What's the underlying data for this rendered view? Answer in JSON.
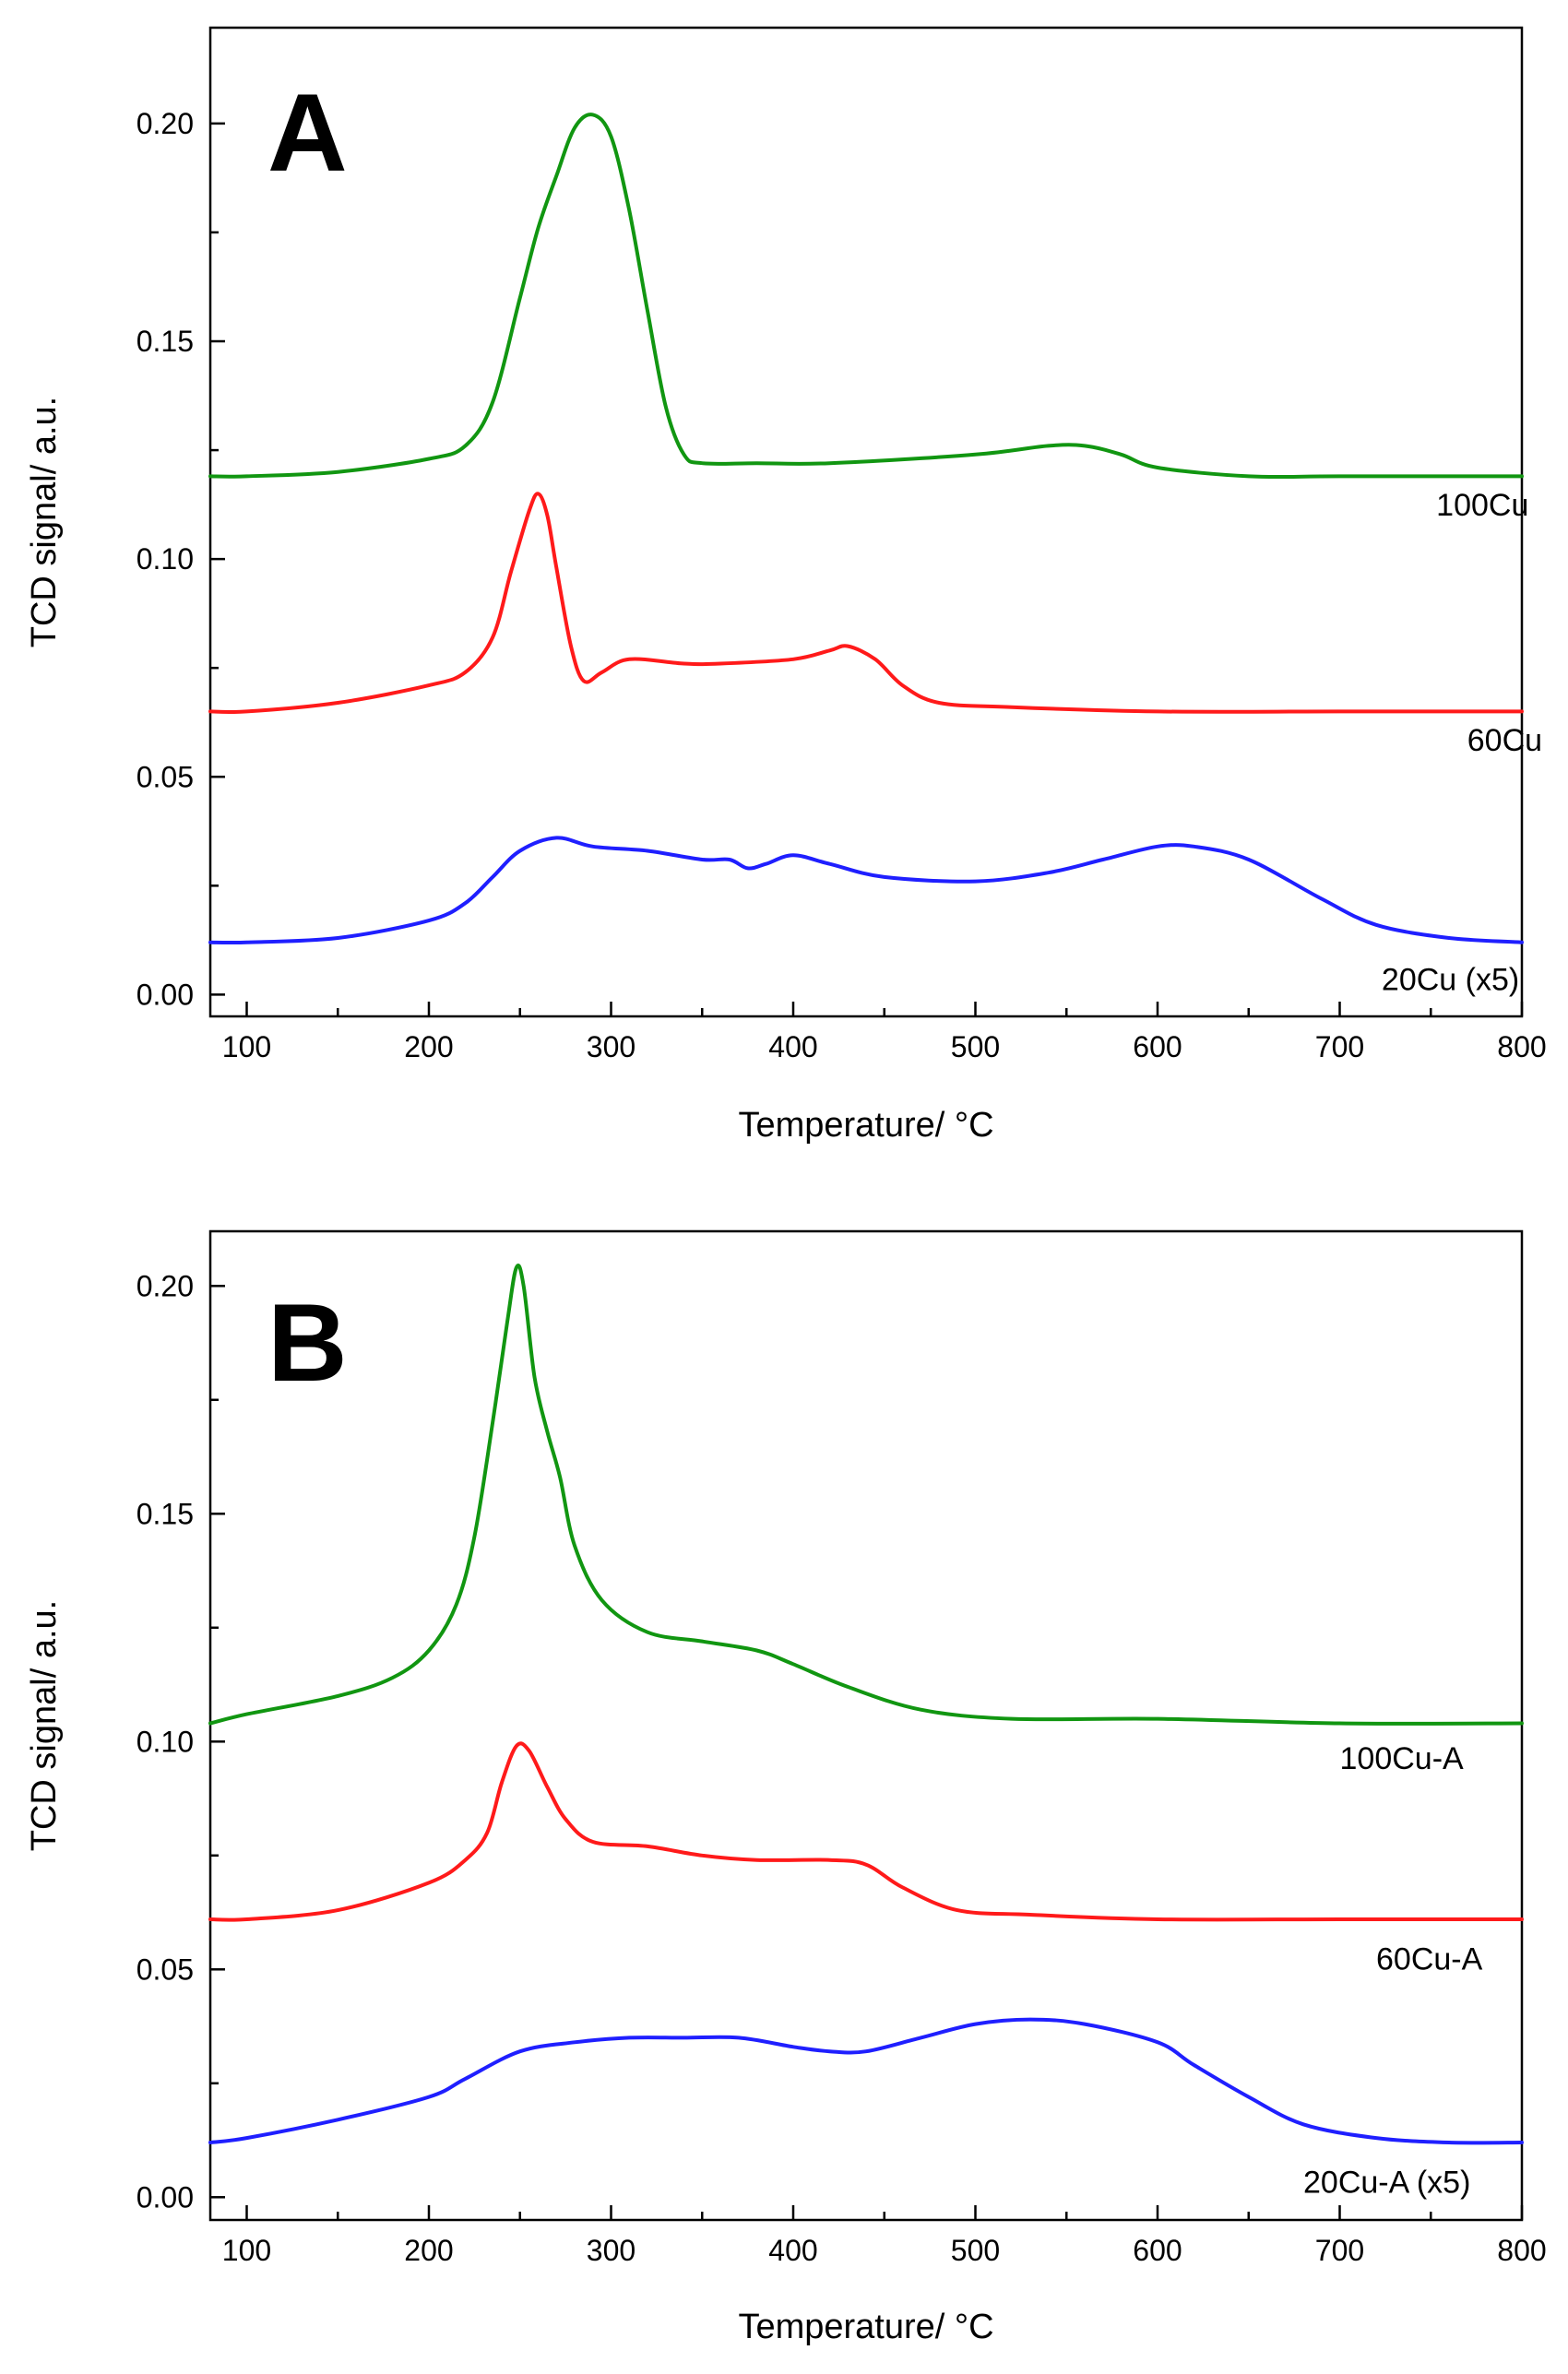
{
  "chart_data": [
    {
      "type": "line",
      "panel": "A",
      "xlabel": "Temperature/ °C",
      "ylabel": "TCD signal/ a.u.",
      "xlim": [
        80,
        800
      ],
      "ylim": [
        -0.005,
        0.222
      ],
      "x_ticks": [
        100,
        200,
        300,
        400,
        500,
        600,
        700,
        800
      ],
      "y_ticks": [
        0.0,
        0.05,
        0.1,
        0.15,
        0.2
      ],
      "x_tick_labels": [
        "100",
        "200",
        "300",
        "400",
        "500",
        "600",
        "700",
        "800"
      ],
      "y_tick_labels": [
        "0.00",
        "0.05",
        "0.10",
        "0.15",
        "0.20"
      ],
      "series": [
        {
          "name": "100Cu",
          "label": "100Cu",
          "color": "#119611",
          "label_x": 753,
          "label_y": 0.11,
          "points": [
            [
              80,
              0.119
            ],
            [
              100,
              0.119
            ],
            [
              150,
              0.12
            ],
            [
              200,
              0.123
            ],
            [
              220,
              0.126
            ],
            [
              235,
              0.136
            ],
            [
              250,
              0.16
            ],
            [
              260,
              0.176
            ],
            [
              270,
              0.188
            ],
            [
              280,
              0.199
            ],
            [
              290,
              0.202
            ],
            [
              300,
              0.197
            ],
            [
              310,
              0.18
            ],
            [
              320,
              0.157
            ],
            [
              330,
              0.135
            ],
            [
              340,
              0.124
            ],
            [
              350,
              0.122
            ],
            [
              380,
              0.122
            ],
            [
              420,
              0.122
            ],
            [
              500,
              0.124
            ],
            [
              540,
              0.126
            ],
            [
              560,
              0.126
            ],
            [
              580,
              0.124
            ],
            [
              600,
              0.121
            ],
            [
              650,
              0.119
            ],
            [
              700,
              0.119
            ],
            [
              800,
              0.119
            ]
          ]
        },
        {
          "name": "60Cu",
          "label": "60Cu",
          "color": "#ff1a1a",
          "label_x": 770,
          "label_y": 0.056,
          "points": [
            [
              80,
              0.065
            ],
            [
              100,
              0.065
            ],
            [
              150,
              0.067
            ],
            [
              200,
              0.071
            ],
            [
              220,
              0.074
            ],
            [
              235,
              0.082
            ],
            [
              245,
              0.097
            ],
            [
              255,
              0.111
            ],
            [
              260,
              0.115
            ],
            [
              265,
              0.11
            ],
            [
              270,
              0.098
            ],
            [
              278,
              0.08
            ],
            [
              285,
              0.072
            ],
            [
              295,
              0.074
            ],
            [
              310,
              0.077
            ],
            [
              340,
              0.076
            ],
            [
              360,
              0.076
            ],
            [
              400,
              0.077
            ],
            [
              420,
              0.079
            ],
            [
              430,
              0.08
            ],
            [
              445,
              0.077
            ],
            [
              460,
              0.071
            ],
            [
              480,
              0.067
            ],
            [
              520,
              0.066
            ],
            [
              600,
              0.065
            ],
            [
              700,
              0.065
            ],
            [
              800,
              0.065
            ]
          ]
        },
        {
          "name": "20Cu (x5)",
          "label": "20Cu (x5)",
          "color": "#1f1fff",
          "label_x": 723,
          "label_y": 0.001,
          "points": [
            [
              80,
              0.012
            ],
            [
              100,
              0.012
            ],
            [
              150,
              0.013
            ],
            [
              200,
              0.017
            ],
            [
              220,
              0.021
            ],
            [
              235,
              0.027
            ],
            [
              250,
              0.033
            ],
            [
              270,
              0.036
            ],
            [
              290,
              0.034
            ],
            [
              320,
              0.033
            ],
            [
              350,
              0.031
            ],
            [
              365,
              0.031
            ],
            [
              375,
              0.029
            ],
            [
              385,
              0.03
            ],
            [
              400,
              0.032
            ],
            [
              420,
              0.03
            ],
            [
              450,
              0.027
            ],
            [
              500,
              0.026
            ],
            [
              540,
              0.028
            ],
            [
              570,
              0.031
            ],
            [
              600,
              0.034
            ],
            [
              620,
              0.034
            ],
            [
              650,
              0.031
            ],
            [
              690,
              0.022
            ],
            [
              720,
              0.016
            ],
            [
              760,
              0.013
            ],
            [
              800,
              0.012
            ]
          ]
        }
      ]
    },
    {
      "type": "line",
      "panel": "B",
      "xlabel": "Temperature/ °C",
      "ylabel": "TCD signal/ a.u.",
      "xlim": [
        80,
        800
      ],
      "ylim": [
        -0.005,
        0.212
      ],
      "x_ticks": [
        100,
        200,
        300,
        400,
        500,
        600,
        700,
        800
      ],
      "y_ticks": [
        0.0,
        0.05,
        0.1,
        0.15,
        0.2
      ],
      "x_tick_labels": [
        "100",
        "200",
        "300",
        "400",
        "500",
        "600",
        "700",
        "800"
      ],
      "y_tick_labels": [
        "0.00",
        "0.05",
        "0.10",
        "0.15",
        "0.20"
      ],
      "series": [
        {
          "name": "100Cu-A",
          "label": "100Cu-A",
          "color": "#119611",
          "label_x": 700,
          "label_y": 0.094,
          "points": [
            [
              80,
              0.104
            ],
            [
              100,
              0.106
            ],
            [
              150,
              0.11
            ],
            [
              180,
              0.114
            ],
            [
              200,
              0.12
            ],
            [
              215,
              0.13
            ],
            [
              225,
              0.145
            ],
            [
              235,
              0.17
            ],
            [
              243,
              0.192
            ],
            [
              248,
              0.204
            ],
            [
              252,
              0.2
            ],
            [
              258,
              0.18
            ],
            [
              265,
              0.168
            ],
            [
              272,
              0.158
            ],
            [
              280,
              0.143
            ],
            [
              295,
              0.131
            ],
            [
              320,
              0.124
            ],
            [
              350,
              0.122
            ],
            [
              380,
              0.12
            ],
            [
              400,
              0.117
            ],
            [
              430,
              0.112
            ],
            [
              470,
              0.107
            ],
            [
              520,
              0.105
            ],
            [
              600,
              0.105
            ],
            [
              700,
              0.104
            ],
            [
              800,
              0.104
            ]
          ]
        },
        {
          "name": "60Cu-A",
          "label": "60Cu-A",
          "color": "#ff1a1a",
          "label_x": 720,
          "label_y": 0.05,
          "points": [
            [
              80,
              0.061
            ],
            [
              100,
              0.061
            ],
            [
              150,
              0.063
            ],
            [
              200,
              0.069
            ],
            [
              220,
              0.074
            ],
            [
              232,
              0.08
            ],
            [
              240,
              0.091
            ],
            [
              248,
              0.099
            ],
            [
              255,
              0.098
            ],
            [
              265,
              0.09
            ],
            [
              275,
              0.083
            ],
            [
              290,
              0.078
            ],
            [
              320,
              0.077
            ],
            [
              350,
              0.075
            ],
            [
              380,
              0.074
            ],
            [
              420,
              0.074
            ],
            [
              440,
              0.073
            ],
            [
              460,
              0.068
            ],
            [
              490,
              0.063
            ],
            [
              530,
              0.062
            ],
            [
              600,
              0.061
            ],
            [
              700,
              0.061
            ],
            [
              800,
              0.061
            ]
          ]
        },
        {
          "name": "20Cu-A (x5)",
          "label": "20Cu-A (x5)",
          "color": "#1f1fff",
          "label_x": 680,
          "label_y": 0.001,
          "points": [
            [
              80,
              0.012
            ],
            [
              100,
              0.013
            ],
            [
              150,
              0.017
            ],
            [
              200,
              0.022
            ],
            [
              220,
              0.026
            ],
            [
              250,
              0.032
            ],
            [
              280,
              0.034
            ],
            [
              310,
              0.035
            ],
            [
              340,
              0.035
            ],
            [
              370,
              0.035
            ],
            [
              400,
              0.033
            ],
            [
              420,
              0.032
            ],
            [
              440,
              0.032
            ],
            [
              470,
              0.035
            ],
            [
              500,
              0.038
            ],
            [
              530,
              0.039
            ],
            [
              560,
              0.038
            ],
            [
              600,
              0.034
            ],
            [
              620,
              0.029
            ],
            [
              650,
              0.022
            ],
            [
              680,
              0.016
            ],
            [
              720,
              0.013
            ],
            [
              760,
              0.012
            ],
            [
              800,
              0.012
            ]
          ]
        }
      ]
    }
  ]
}
